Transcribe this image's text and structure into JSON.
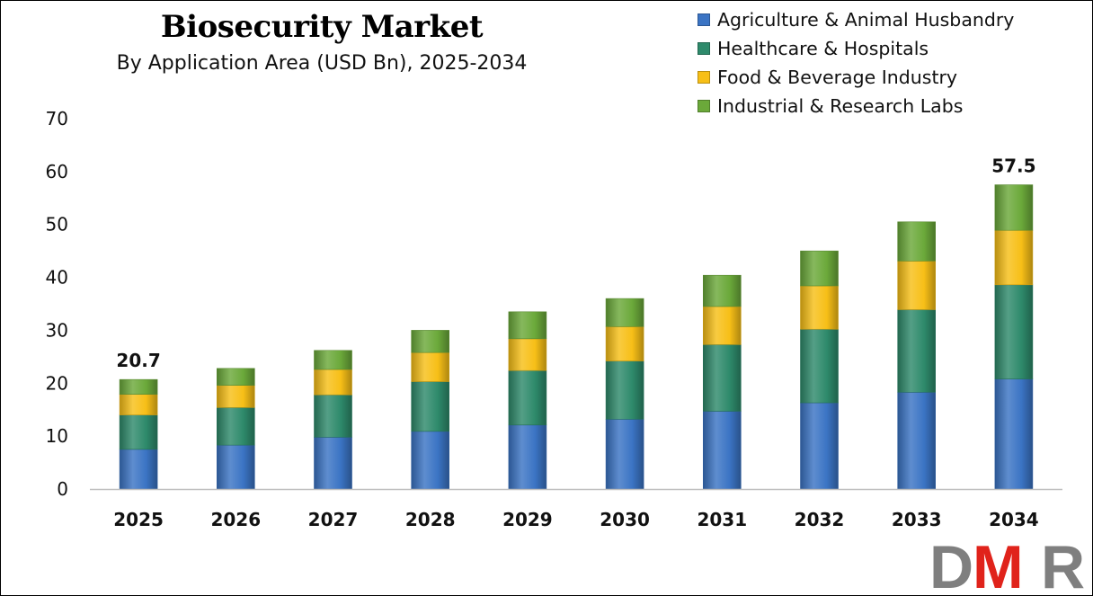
{
  "colors": {
    "agriculture": "#3b74c4",
    "healthcare": "#2e8a6b",
    "food": "#f7bf17",
    "industrial": "#6ba93a",
    "logo_grey": "#7f7f7f",
    "logo_red": "#e0231b"
  },
  "logo": {
    "text": "DMR",
    "left": "D",
    "middle": "M",
    "right": "R"
  },
  "chart_data": {
    "type": "bar",
    "stacked": true,
    "title": "Biosecurity Market",
    "subtitle": "By Application Area (USD Bn), 2025-2034",
    "xlabel": "",
    "ylabel": "",
    "ylim": [
      0,
      70
    ],
    "yticks": [
      "0",
      "10",
      "20",
      "30",
      "40",
      "50",
      "60",
      "70"
    ],
    "grid": false,
    "legend_position": "top-right",
    "categories": [
      "2025",
      "2026",
      "2027",
      "2028",
      "2029",
      "2030",
      "2031",
      "2032",
      "2033",
      "2034"
    ],
    "series": [
      {
        "name": "Agriculture & Animal Husbandry",
        "values": [
          7.5,
          8.3,
          9.8,
          10.9,
          12.1,
          13.2,
          14.7,
          16.3,
          18.3,
          20.8
        ]
      },
      {
        "name": "Healthcare & Hospitals",
        "values": [
          6.5,
          7.1,
          8.0,
          9.4,
          10.3,
          11.0,
          12.6,
          13.9,
          15.6,
          17.8
        ]
      },
      {
        "name": "Food & Beverage Industry",
        "values": [
          3.9,
          4.2,
          4.8,
          5.5,
          6.0,
          6.5,
          7.2,
          8.2,
          9.2,
          10.3
        ]
      },
      {
        "name": "Industrial & Research Labs",
        "values": [
          2.8,
          3.2,
          3.6,
          4.2,
          5.1,
          5.3,
          5.9,
          6.6,
          7.4,
          8.6
        ]
      }
    ],
    "data_labels": [
      {
        "category": "2025",
        "text": "20.7"
      },
      {
        "category": "2034",
        "text": "57.5"
      }
    ]
  }
}
